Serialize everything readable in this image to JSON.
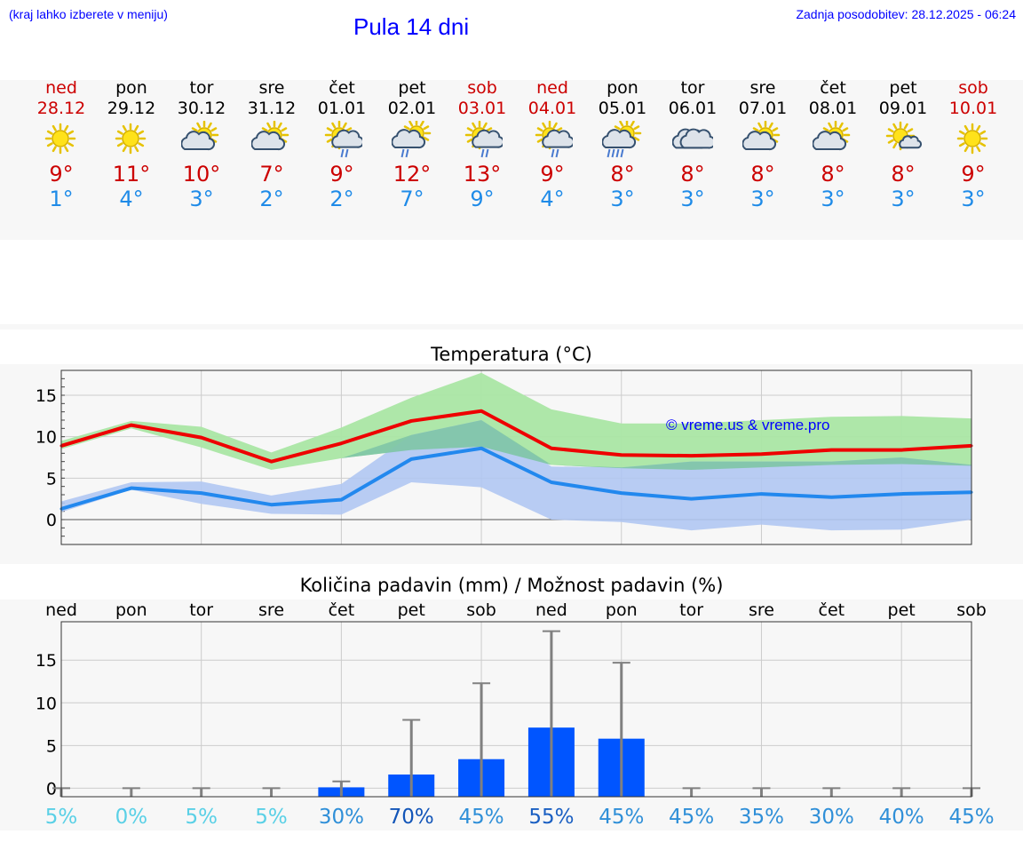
{
  "header": {
    "hint": "(kraj lahko izberete v meniju)",
    "title": "Pula 14 dni",
    "updated": "Zadnja posodobitev: 28.12.2025 - 06:24"
  },
  "days": [
    {
      "name": "ned",
      "date": "28.12",
      "weekend": true,
      "icon": "sun-icon",
      "tmax": "9°",
      "tmin": "1°"
    },
    {
      "name": "pon",
      "date": "29.12",
      "weekend": false,
      "icon": "sun-icon",
      "tmax": "11°",
      "tmin": "4°"
    },
    {
      "name": "tor",
      "date": "30.12",
      "weekend": false,
      "icon": "partly-cloudy-icon",
      "tmax": "10°",
      "tmin": "3°"
    },
    {
      "name": "sre",
      "date": "31.12",
      "weekend": false,
      "icon": "partly-cloudy-icon",
      "tmax": "7°",
      "tmin": "2°"
    },
    {
      "name": "čet",
      "date": "01.01",
      "weekend": false,
      "icon": "sun-cloud-rain-icon",
      "tmax": "9°",
      "tmin": "2°"
    },
    {
      "name": "pet",
      "date": "02.01",
      "weekend": false,
      "icon": "partly-cloudy-rain-icon",
      "tmax": "12°",
      "tmin": "7°"
    },
    {
      "name": "sob",
      "date": "03.01",
      "weekend": true,
      "icon": "sun-cloud-rain-icon",
      "tmax": "13°",
      "tmin": "9°"
    },
    {
      "name": "ned",
      "date": "04.01",
      "weekend": true,
      "icon": "sun-cloud-rain-icon",
      "tmax": "9°",
      "tmin": "4°"
    },
    {
      "name": "pon",
      "date": "05.01",
      "weekend": false,
      "icon": "sun-cloud-heavy-rain-icon",
      "tmax": "8°",
      "tmin": "3°"
    },
    {
      "name": "tor",
      "date": "06.01",
      "weekend": false,
      "icon": "cloudy-icon",
      "tmax": "8°",
      "tmin": "3°"
    },
    {
      "name": "sre",
      "date": "07.01",
      "weekend": false,
      "icon": "partly-cloudy-icon",
      "tmax": "8°",
      "tmin": "3°"
    },
    {
      "name": "čet",
      "date": "08.01",
      "weekend": false,
      "icon": "partly-cloudy-icon",
      "tmax": "8°",
      "tmin": "3°"
    },
    {
      "name": "pet",
      "date": "09.01",
      "weekend": false,
      "icon": "sun-small-cloud-icon",
      "tmax": "8°",
      "tmin": "3°"
    },
    {
      "name": "sob",
      "date": "10.01",
      "weekend": true,
      "icon": "sun-icon",
      "tmax": "9°",
      "tmin": "3°"
    }
  ],
  "colors": {
    "link_blue": "#0000ff",
    "weekend_red": "#cc0000",
    "tmax_line": "#ee0000",
    "tmin_line": "#2288ee",
    "tmax_band": "#aae6a4",
    "tmin_band": "#b0c6f2",
    "overlap_band": "#80c5a6",
    "bar": "#0055ff",
    "whisker": "#808080"
  },
  "chart_data": [
    {
      "type": "line",
      "title": "Temperatura (°C)",
      "watermark": "© vreme.us & vreme.pro",
      "categories": [
        "28.12",
        "29.12",
        "30.12",
        "31.12",
        "01.01",
        "02.01",
        "03.01",
        "04.01",
        "05.01",
        "06.01",
        "07.01",
        "08.01",
        "09.01",
        "10.01"
      ],
      "ylim": [
        -3,
        18
      ],
      "yticks": [
        0,
        5,
        10,
        15
      ],
      "series": [
        {
          "name": "max",
          "values": [
            8.9,
            11.4,
            9.9,
            7.0,
            9.2,
            11.9,
            13.1,
            8.6,
            7.8,
            7.7,
            7.9,
            8.4,
            8.4,
            8.9
          ],
          "band_low": [
            8.5,
            11.0,
            8.7,
            6.0,
            7.4,
            8.4,
            8.8,
            6.6,
            6.2,
            6.0,
            6.3,
            6.6,
            6.7,
            6.5
          ],
          "band_high": [
            9.5,
            11.9,
            11.2,
            8.1,
            11.1,
            14.7,
            17.7,
            13.3,
            11.6,
            11.6,
            12.0,
            12.4,
            12.5,
            12.2
          ]
        },
        {
          "name": "min",
          "values": [
            1.3,
            3.8,
            3.2,
            1.8,
            2.4,
            7.3,
            8.6,
            4.5,
            3.2,
            2.5,
            3.1,
            2.7,
            3.1,
            3.3
          ],
          "band_low": [
            0.9,
            3.6,
            1.9,
            0.7,
            0.6,
            4.5,
            3.9,
            0.0,
            -0.3,
            -1.3,
            -0.6,
            -1.3,
            -1.2,
            0.0
          ],
          "band_high": [
            2.2,
            4.5,
            4.6,
            2.9,
            4.3,
            10.2,
            12.0,
            6.4,
            6.3,
            7.0,
            7.0,
            7.0,
            7.5,
            6.6
          ]
        }
      ]
    },
    {
      "type": "bar",
      "title": "Količina padavin (mm) / Možnost padavin (%)",
      "categories": [
        "ned",
        "pon",
        "tor",
        "sre",
        "čet",
        "pet",
        "sob",
        "ned",
        "pon",
        "tor",
        "sre",
        "čet",
        "pet",
        "sob"
      ],
      "values": [
        0,
        0,
        0,
        0,
        0.1,
        1.6,
        3.4,
        7.1,
        5.8,
        0,
        0,
        0,
        0,
        0
      ],
      "whisker_high": [
        0,
        0,
        0,
        0,
        0.8,
        8.0,
        12.3,
        18.4,
        14.7,
        0,
        0,
        0,
        0,
        0
      ],
      "probability": [
        "5%",
        "0%",
        "5%",
        "5%",
        "30%",
        "70%",
        "45%",
        "55%",
        "45%",
        "45%",
        "35%",
        "30%",
        "40%",
        "45%"
      ],
      "ylim": [
        -1,
        19.5
      ],
      "yticks": [
        0,
        5,
        10,
        15
      ]
    }
  ]
}
